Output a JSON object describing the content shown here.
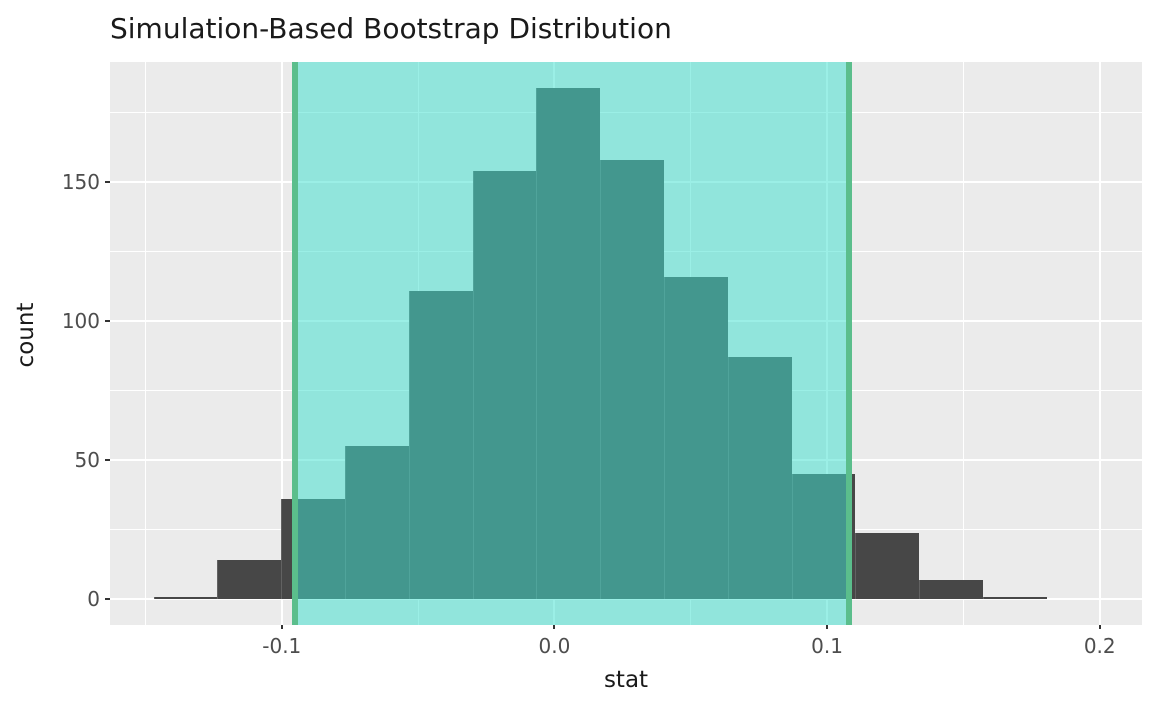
{
  "colors": {
    "panel_bg": "#EBEBEB",
    "grid": "#FFFFFF",
    "bar_fill": "#474747",
    "ci_fill": "rgba(64,224,208,0.52)",
    "ci_line": "#5BBE8C",
    "tick_mark": "#333333",
    "tick_label": "#4D4D4D",
    "axis_title": "#1A1A1A"
  },
  "chart_data": {
    "type": "bar",
    "subtype": "histogram",
    "title": "Simulation-Based Bootstrap Distribution",
    "xlabel": "stat",
    "ylabel": "count",
    "xlim": [
      -0.163,
      0.2155
    ],
    "ylim": [
      -9.2,
      193.2
    ],
    "grid": true,
    "x_ticks": [
      {
        "value": -0.1,
        "label": "-0.1"
      },
      {
        "value": 0.0,
        "label": "0.0"
      },
      {
        "value": 0.1,
        "label": "0.1"
      },
      {
        "value": 0.2,
        "label": "0.2"
      }
    ],
    "y_ticks": [
      {
        "value": 0,
        "label": "0"
      },
      {
        "value": 50,
        "label": "50"
      },
      {
        "value": 100,
        "label": "100"
      },
      {
        "value": 150,
        "label": "150"
      }
    ],
    "x_minor_ticks": [
      -0.15,
      -0.05,
      0.05,
      0.15
    ],
    "y_minor_ticks": [
      25,
      75,
      125,
      175
    ],
    "bins": [
      {
        "x0": -0.147,
        "x1": -0.1236,
        "count": 1
      },
      {
        "x0": -0.1236,
        "x1": -0.1002,
        "count": 14
      },
      {
        "x0": -0.1002,
        "x1": -0.0768,
        "count": 36
      },
      {
        "x0": -0.0768,
        "x1": -0.0534,
        "count": 55
      },
      {
        "x0": -0.0534,
        "x1": -0.03,
        "count": 111
      },
      {
        "x0": -0.03,
        "x1": -0.0066,
        "count": 154
      },
      {
        "x0": -0.0066,
        "x1": 0.0168,
        "count": 184
      },
      {
        "x0": 0.0168,
        "x1": 0.0402,
        "count": 158
      },
      {
        "x0": 0.0402,
        "x1": 0.0636,
        "count": 116
      },
      {
        "x0": 0.0636,
        "x1": 0.087,
        "count": 87
      },
      {
        "x0": 0.087,
        "x1": 0.1104,
        "count": 45
      },
      {
        "x0": 0.1104,
        "x1": 0.1338,
        "count": 24
      },
      {
        "x0": 0.1338,
        "x1": 0.1572,
        "count": 7
      },
      {
        "x0": 0.1572,
        "x1": 0.1806,
        "count": 1
      }
    ],
    "confidence_interval": {
      "lower": -0.095,
      "upper": 0.108
    }
  }
}
